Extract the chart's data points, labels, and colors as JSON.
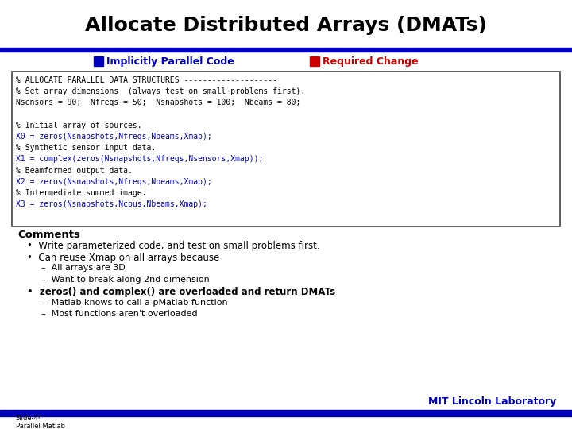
{
  "title": "Allocate Distributed Arrays (DMATs)",
  "title_color": "#000000",
  "title_fontsize": 18,
  "legend1_label": "Implicitly Parallel Code",
  "legend1_color": "#0000BB",
  "legend2_label": "Required Change",
  "legend2_color": "#CC0000",
  "code_lines": [
    {
      "text": "% ALLOCATE PARALLEL DATA STRUCTURES --------------------",
      "color": "#000000"
    },
    {
      "text": "% Set array dimensions  (always test on small problems first).",
      "color": "#000000"
    },
    {
      "text": "Nsensors = 90;  Nfreqs = 50;  Nsnapshots = 100;  Nbeams = 80;",
      "color": "#000000"
    },
    {
      "text": "",
      "color": "#000000"
    },
    {
      "text": "% Initial array of sources.",
      "color": "#000000"
    },
    {
      "text": "X0 = zeros(Nsnapshots,Nfreqs,Nbeams,Xmap);",
      "color": "#0000BB"
    },
    {
      "text": "% Synthetic sensor input data.",
      "color": "#000000"
    },
    {
      "text": "X1 = complex(zeros(Nsnapshots,Nfreqs,Nsensors,Xmap));",
      "color": "#0000BB"
    },
    {
      "text": "% Beamformed output data.",
      "color": "#000000"
    },
    {
      "text": "X2 = zeros(Nsnapshots,Nfreqs,Nbeams,Xmap);",
      "color": "#0000BB"
    },
    {
      "text": "% Intermediate summed image.",
      "color": "#000000"
    },
    {
      "text": "X3 = zeros(Nsnapshots,Ncpus,Nbeams,Xmap);",
      "color": "#0000BB"
    }
  ],
  "bullet_items": [
    {
      "level": 1,
      "text": "Comments",
      "bold": true,
      "fontsize": 9.5
    },
    {
      "level": 2,
      "text": "Write parameterized code, and test on small problems first.",
      "bold": false,
      "fontsize": 8.5
    },
    {
      "level": 2,
      "text": "Can reuse Xmap on all arrays because",
      "bold": false,
      "fontsize": 8.5
    },
    {
      "level": 3,
      "text": "All arrays are 3D",
      "bold": false,
      "fontsize": 8
    },
    {
      "level": 3,
      "text": "Want to break along 2nd dimension",
      "bold": false,
      "fontsize": 8
    },
    {
      "level": 2,
      "text": "zeros() and complex() are overloaded and return DMATs",
      "bold": true,
      "fontsize": 8.5
    },
    {
      "level": 3,
      "text": "Matlab knows to call a pMatlab function",
      "bold": false,
      "fontsize": 8
    },
    {
      "level": 3,
      "text": "Most functions aren't overloaded",
      "bold": false,
      "fontsize": 8
    }
  ],
  "footer_left": "Slide-44\nParallel Matlab",
  "footer_right": "MIT Lincoln Laboratory",
  "bg_color": "#FFFFFF",
  "header_bar_color": "#0000BB",
  "footer_bar_color": "#0000BB",
  "code_font": "monospace",
  "code_fontsize": 7.0
}
